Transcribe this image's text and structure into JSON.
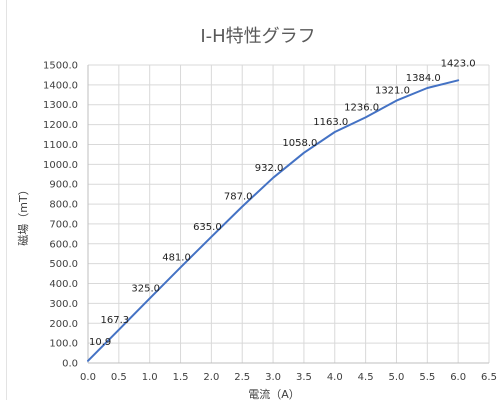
{
  "chart_data": {
    "type": "line",
    "title": "I-H特性グラフ",
    "xlabel": "電流（A）",
    "ylabel": "磁場（mT）",
    "xlim": [
      0,
      6.5
    ],
    "ylim": [
      0,
      1500
    ],
    "x_ticks": [
      "0.0",
      "0.5",
      "1.0",
      "1.5",
      "2.0",
      "2.5",
      "3.0",
      "3.5",
      "4.0",
      "4.5",
      "5.0",
      "5.5",
      "6.0",
      "6.5"
    ],
    "y_ticks": [
      "0.0",
      "100.0",
      "200.0",
      "300.0",
      "400.0",
      "500.0",
      "600.0",
      "700.0",
      "800.0",
      "900.0",
      "1000.0",
      "1100.0",
      "1200.0",
      "1300.0",
      "1400.0",
      "1500.0"
    ],
    "grid": true,
    "legend": "none",
    "color": "#4472c4",
    "x": [
      0.0,
      0.5,
      1.0,
      1.5,
      2.0,
      2.5,
      3.0,
      3.5,
      4.0,
      4.5,
      5.0,
      5.5,
      6.0
    ],
    "values": [
      10.9,
      167.3,
      325.0,
      481.0,
      635.0,
      787.0,
      932.0,
      1058.0,
      1163.0,
      1236.0,
      1321.0,
      1384.0,
      1423.0
    ],
    "labels": [
      "10.9",
      "167.3",
      "325.0",
      "481.0",
      "635.0",
      "787.0",
      "932.0",
      "1058.0",
      "1163.0",
      "1236.0",
      "1321.0",
      "1384.0",
      "1423.0"
    ]
  }
}
